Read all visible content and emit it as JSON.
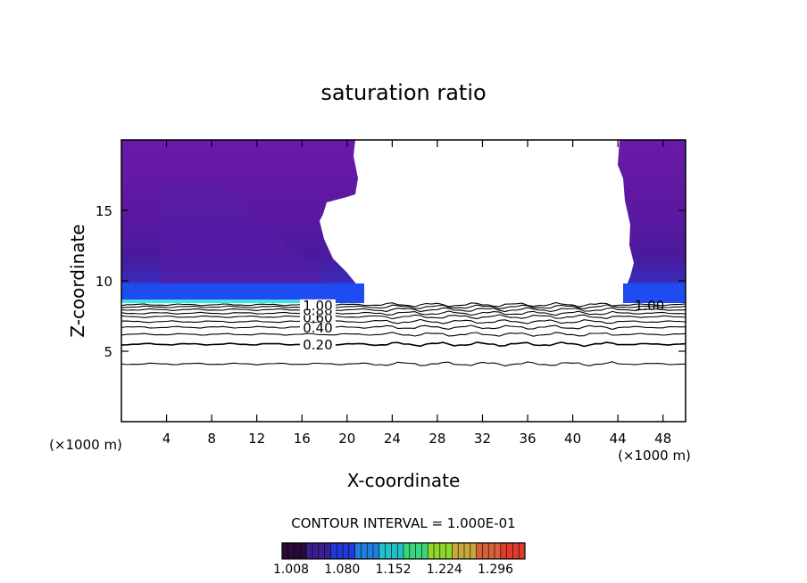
{
  "chart_data": {
    "type": "contour",
    "title": "saturation ratio",
    "xlabel": "X-coordinate",
    "ylabel": "Z-coordinate",
    "x_unit_left": "(×1000 m)",
    "x_unit_right": "(×1000 m)",
    "xlim": [
      0,
      50
    ],
    "ylim": [
      0,
      20
    ],
    "x_ticks": [
      4,
      8,
      12,
      16,
      20,
      24,
      28,
      32,
      36,
      40,
      44,
      48
    ],
    "x_tick_labels": [
      "4",
      "8",
      "12",
      "16",
      "20",
      "24",
      "28",
      "32",
      "36",
      "40",
      "44",
      "48"
    ],
    "y_ticks": [
      5,
      10,
      15
    ],
    "y_tick_labels": [
      "5",
      "10",
      "15"
    ],
    "contour_interval_text": "CONTOUR INTERVAL = 1.000E-01",
    "contour_levels": [
      {
        "level": 0.1,
        "z": 4.1,
        "label": ""
      },
      {
        "level": 0.2,
        "z": 5.5,
        "label": "0.20"
      },
      {
        "level": 0.3,
        "z": 6.2,
        "label": ""
      },
      {
        "level": 0.4,
        "z": 6.7,
        "label": "0.40"
      },
      {
        "level": 0.5,
        "z": 7.1,
        "label": ""
      },
      {
        "level": 0.6,
        "z": 7.45,
        "label": "0.60"
      },
      {
        "level": 0.7,
        "z": 7.7,
        "label": ""
      },
      {
        "level": 0.8,
        "z": 7.95,
        "label": "0.80"
      },
      {
        "level": 0.9,
        "z": 8.15,
        "label": ""
      },
      {
        "level": 1.0,
        "z": 8.3,
        "label": "1.00"
      }
    ],
    "right_label": "1.00",
    "shaded_regions": [
      {
        "name": "left supersaturated region",
        "x_range": [
          0,
          21
        ],
        "z_range": [
          8.4,
          20
        ]
      },
      {
        "name": "right supersaturated region",
        "x_range": [
          44.5,
          50
        ],
        "z_range": [
          8.4,
          20
        ]
      }
    ],
    "colorbar": {
      "min": 1.008,
      "max": 1.35,
      "tick_labels": [
        "1.008",
        "1.080",
        "1.152",
        "1.224",
        "1.296"
      ],
      "colors": [
        "#2a0a3a",
        "#3a1f8f",
        "#1f3ad6",
        "#1f7fe0",
        "#22c0c8",
        "#3ad67a",
        "#8fd62a",
        "#c8a83a",
        "#d6603a",
        "#e03a2a"
      ]
    },
    "palette": {
      "purple": "#6a1aa8",
      "deep_purple": "#4a1490",
      "blue": "#2a4ae8",
      "bright_blue": "#1f6cff",
      "cyan": "#3ee8e0"
    }
  }
}
